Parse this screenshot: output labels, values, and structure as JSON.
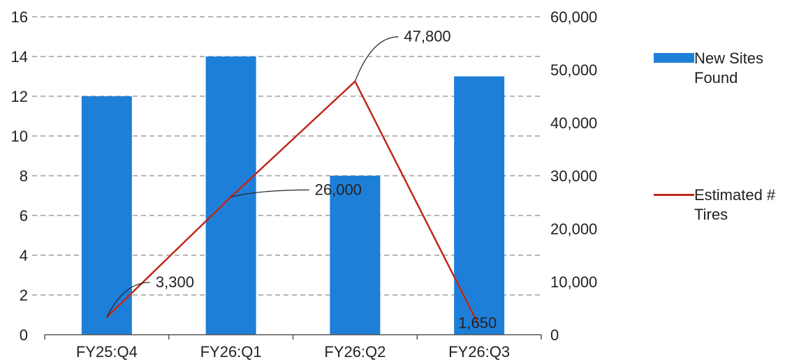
{
  "chart_data": {
    "type": "bar",
    "categories": [
      "FY25:Q4",
      "FY26:Q1",
      "FY26:Q2",
      "FY26:Q3"
    ],
    "series": [
      {
        "name": "New Sites Found",
        "type": "bar",
        "axis": "left",
        "color": "#1E7FD8",
        "values": [
          12,
          14,
          8,
          13
        ]
      },
      {
        "name": "Estimated # Tires",
        "type": "line",
        "axis": "right",
        "color": "#C0281A",
        "values": [
          3300,
          26000,
          47800,
          1650
        ],
        "labels": [
          "3,300",
          "26,000",
          "47,800",
          "1,650"
        ]
      }
    ],
    "y_left": {
      "min": 0,
      "max": 16,
      "ticks": [
        "0",
        "2",
        "4",
        "6",
        "8",
        "10",
        "12",
        "14",
        "16"
      ]
    },
    "y_right": {
      "min": 0,
      "max": 60000,
      "ticks": [
        "0",
        "10,000",
        "20,000",
        "30,000",
        "40,000",
        "50,000",
        "60,000"
      ]
    },
    "grid": true,
    "legend_position": "right",
    "title": "",
    "xlabel": "",
    "ylabel": ""
  }
}
